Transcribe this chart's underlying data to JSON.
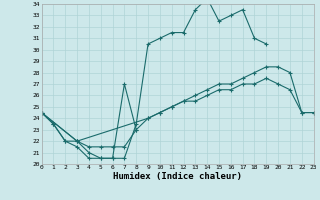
{
  "xlabel": "Humidex (Indice chaleur)",
  "background_color": "#cde8ea",
  "grid_color": "#b0d4d6",
  "line_color": "#1a6b6b",
  "xlim": [
    0,
    23
  ],
  "ylim": [
    20,
    34
  ],
  "xticks": [
    0,
    1,
    2,
    3,
    4,
    5,
    6,
    7,
    8,
    9,
    10,
    11,
    12,
    13,
    14,
    15,
    16,
    17,
    18,
    19,
    20,
    21,
    22,
    23
  ],
  "yticks": [
    20,
    21,
    22,
    23,
    24,
    25,
    26,
    27,
    28,
    29,
    30,
    31,
    32,
    33,
    34
  ],
  "series": [
    {
      "x": [
        0,
        1,
        2,
        3,
        4,
        5,
        6,
        7,
        8,
        9,
        10,
        11,
        12,
        13,
        14,
        15,
        16,
        17,
        18,
        19
      ],
      "y": [
        24.5,
        23.5,
        22.0,
        21.5,
        20.5,
        20.5,
        20.5,
        20.5,
        23.5,
        30.5,
        31.0,
        31.5,
        31.5,
        33.5,
        34.5,
        32.5,
        33.0,
        33.5,
        31.0,
        30.5
      ]
    },
    {
      "x": [
        0,
        1,
        2,
        3,
        4,
        5,
        6,
        7,
        8
      ],
      "y": [
        24.5,
        23.5,
        22.0,
        22.0,
        21.0,
        20.5,
        20.5,
        27.0,
        23.0
      ]
    },
    {
      "x": [
        0,
        3,
        4,
        5,
        6,
        7,
        8,
        9,
        10,
        11,
        12,
        13,
        14,
        15,
        16,
        17,
        18,
        19,
        20,
        21,
        22,
        23
      ],
      "y": [
        24.5,
        22.0,
        21.5,
        21.5,
        21.5,
        21.5,
        23.0,
        24.0,
        24.5,
        25.0,
        25.5,
        25.5,
        26.0,
        26.5,
        26.5,
        27.0,
        27.0,
        27.5,
        27.0,
        26.5,
        24.5,
        24.5
      ]
    },
    {
      "x": [
        0,
        3,
        9,
        10,
        11,
        12,
        13,
        14,
        15,
        16,
        17,
        18,
        19,
        20,
        21,
        22,
        23
      ],
      "y": [
        24.5,
        22.0,
        24.0,
        24.5,
        25.0,
        25.5,
        26.0,
        26.5,
        27.0,
        27.0,
        27.5,
        28.0,
        28.5,
        28.5,
        28.0,
        24.5,
        24.5
      ]
    }
  ]
}
